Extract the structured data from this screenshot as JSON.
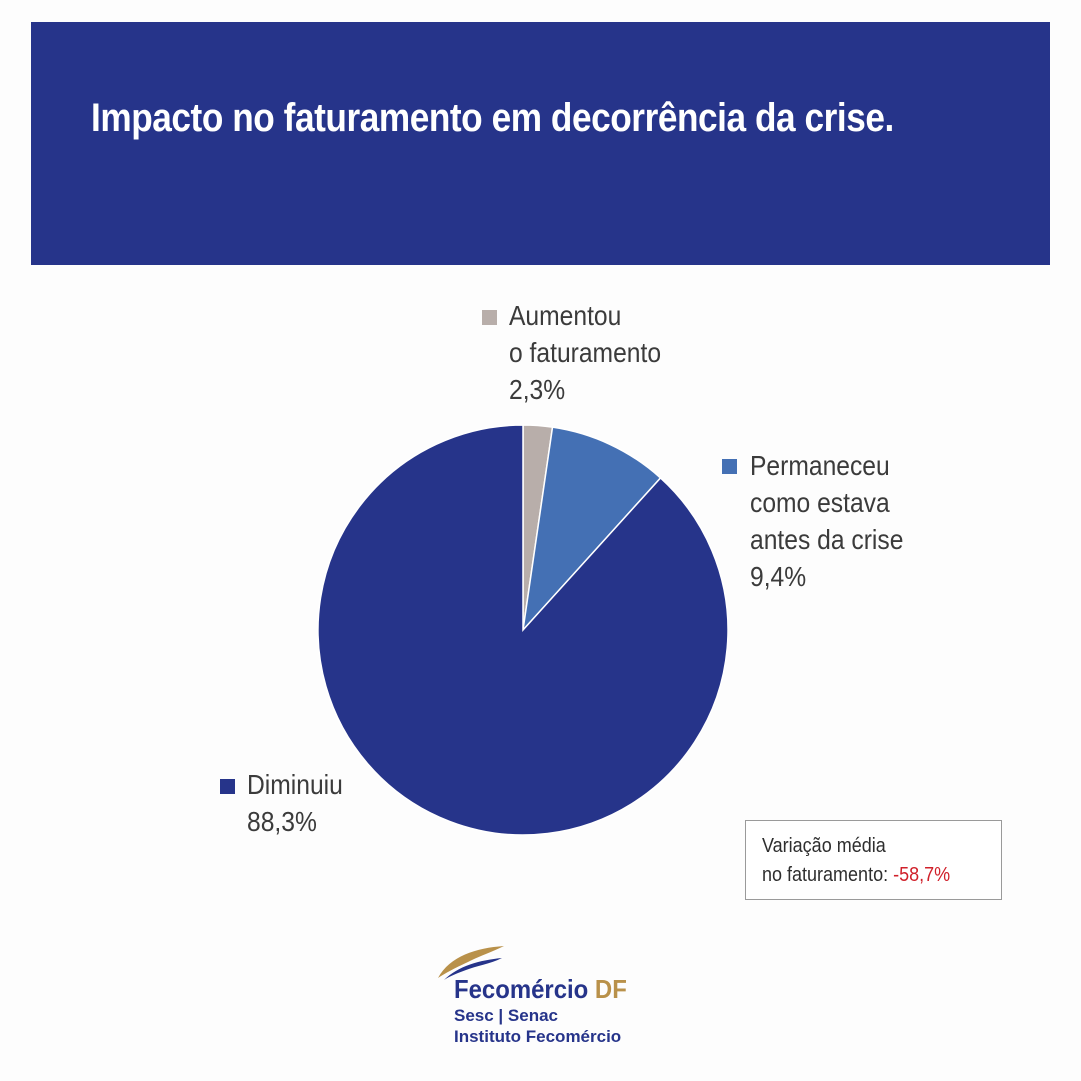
{
  "header": {
    "title": "Impacto no faturamento em decorrência da crise."
  },
  "chart_data": {
    "type": "pie",
    "title": "Impacto no faturamento em decorrência da crise.",
    "slices": [
      {
        "label_lines": [
          "Aumentou",
          "o faturamento"
        ],
        "value": 2.3,
        "value_label": "2,3%",
        "color": "#b8aeaa"
      },
      {
        "label_lines": [
          "Permaneceu",
          "como estava",
          "antes da crise"
        ],
        "value": 9.4,
        "value_label": "9,4%",
        "color": "#4470b4"
      },
      {
        "label_lines": [
          "Diminuiu"
        ],
        "value": 88.3,
        "value_label": "88,3%",
        "color": "#26348a"
      }
    ]
  },
  "note": {
    "label_line1": "Variação média",
    "label_line2": "no faturamento:",
    "value": "-58,7%"
  },
  "logo": {
    "name": "Fecomércio",
    "name_suffix": "DF",
    "sub1": "Sesc | Senac",
    "sub2": "Instituto Fecomércio"
  }
}
